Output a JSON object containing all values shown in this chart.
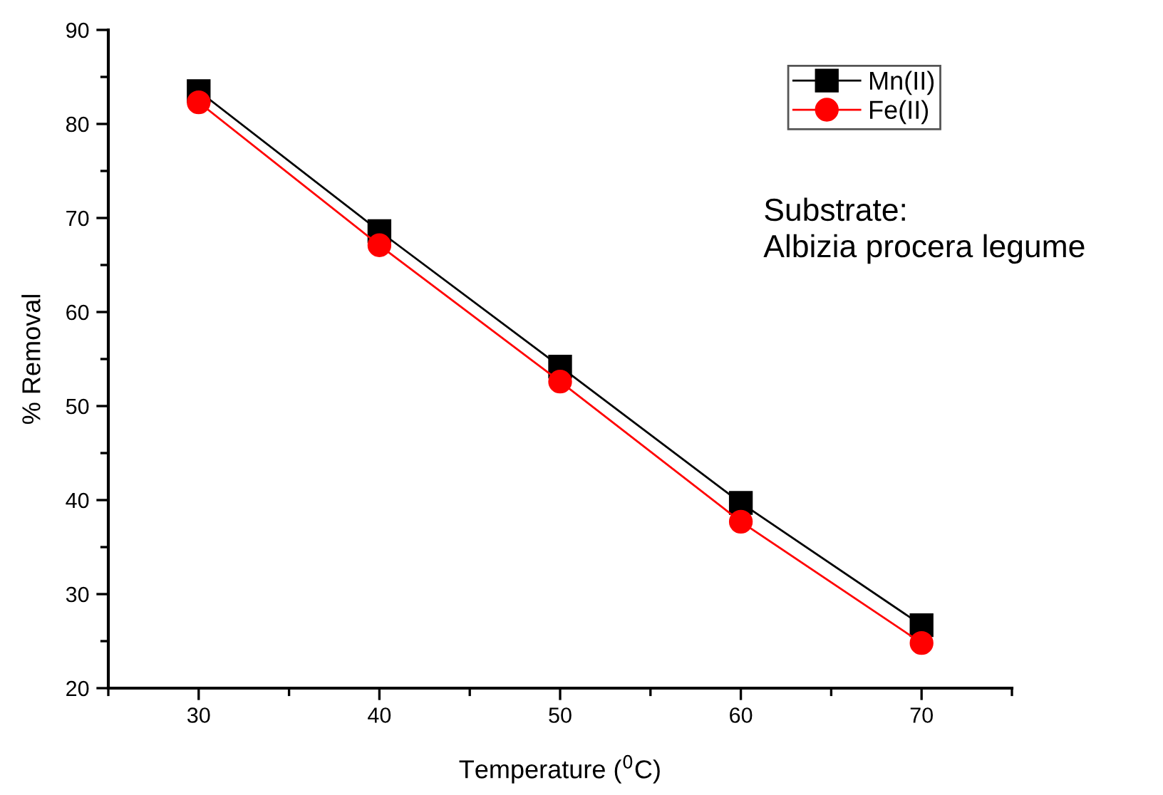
{
  "chart_data": {
    "type": "line",
    "xlabel": "Temperature ($^{0}$C)",
    "ylabel": "% Removal",
    "x": [
      30,
      40,
      50,
      60,
      70
    ],
    "series": [
      {
        "name": "Mn(II)",
        "color": "#000000",
        "marker": "square",
        "values": [
          83.5,
          68.6,
          54.2,
          39.7,
          26.7
        ]
      },
      {
        "name": "Fe(II)",
        "color": "#ff0000",
        "marker": "circle",
        "values": [
          82.3,
          67.1,
          52.6,
          37.7,
          24.8
        ]
      }
    ],
    "xlim": [
      25,
      75
    ],
    "xticks": [
      30,
      40,
      50,
      60,
      70
    ],
    "ylim": [
      20,
      90
    ],
    "yticks": [
      20,
      30,
      40,
      50,
      60,
      70,
      80,
      90
    ],
    "annotations": [
      "Substrate:\nAlbizia procera legume"
    ],
    "legend": "top right",
    "grid": false,
    "line_style": "solid"
  }
}
